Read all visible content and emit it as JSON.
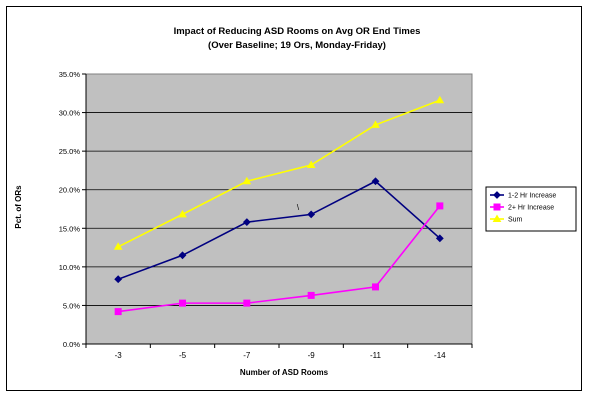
{
  "chart_data": {
    "type": "line",
    "title": "Impact of Reducing ASD Rooms on Avg OR End Times",
    "subtitle": "(Over Baseline; 19 Ors, Monday-Friday)",
    "xlabel": "Number of ASD Rooms",
    "ylabel": "Pct. of ORs",
    "categories": [
      "-3",
      "-5",
      "-7",
      "-9",
      "-11",
      "-14"
    ],
    "ylim": [
      0,
      0.35
    ],
    "yticks": [
      0,
      0.05,
      0.1,
      0.15,
      0.2,
      0.25,
      0.3,
      0.35
    ],
    "ytick_labels": [
      "0.0%",
      "5.0%",
      "10.0%",
      "15.0%",
      "20.0%",
      "25.0%",
      "30.0%",
      "35.0%"
    ],
    "grid": true,
    "plot_background": "#c0c0c0",
    "legend_position": "right",
    "annotation": "\\",
    "series": [
      {
        "name": "1-2 Hr Increase",
        "values": [
          0.084,
          0.115,
          0.158,
          0.168,
          0.211,
          0.137
        ],
        "color": "#000080",
        "marker": "diamond"
      },
      {
        "name": "2+ Hr Increase",
        "values": [
          0.042,
          0.053,
          0.053,
          0.063,
          0.074,
          0.179
        ],
        "color": "#ff00ff",
        "marker": "square"
      },
      {
        "name": "Sum",
        "values": [
          0.126,
          0.168,
          0.211,
          0.232,
          0.284,
          0.316
        ],
        "color": "#ffff00",
        "marker": "triangle"
      }
    ]
  }
}
